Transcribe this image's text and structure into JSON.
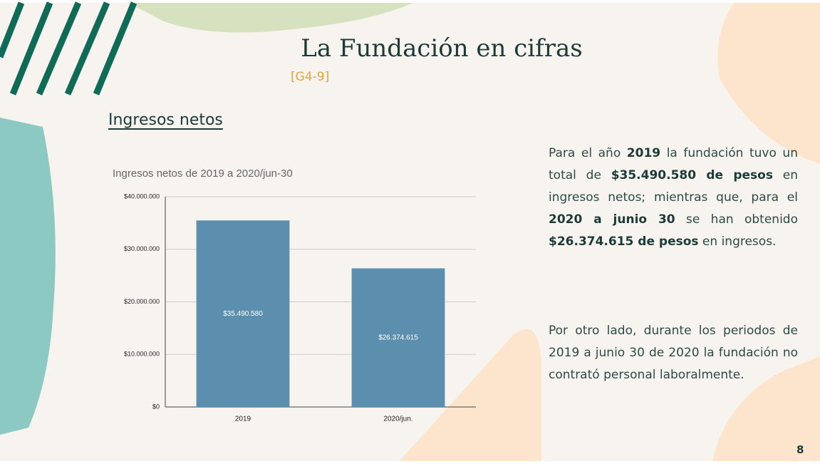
{
  "slide": {
    "title": "La Fundación en cifras",
    "code": "[G4-9]",
    "section": "Ingresos netos",
    "paragraphs": [
      [
        {
          "text": "Para el año ",
          "bold": false
        },
        {
          "text": "2019",
          "bold": true
        },
        {
          "text": " la fundación tuvo un total de ",
          "bold": false
        },
        {
          "text": "$35.490.580 de pesos",
          "bold": true
        },
        {
          "text": " en ingresos netos; mientras que, para el ",
          "bold": false
        },
        {
          "text": "2020 a junio 30",
          "bold": true
        },
        {
          "text": " se han obtenido ",
          "bold": false
        },
        {
          "text": "$26.374.615 de pesos",
          "bold": true
        },
        {
          "text": " en ingresos.",
          "bold": false
        }
      ],
      [
        {
          "text": "Por otro lado, durante los periodos de 2019 a junio 30 de 2020 la fundación no contrató personal laboralmente.",
          "bold": false
        }
      ]
    ],
    "page_number": "8"
  },
  "chart_data": {
    "type": "bar",
    "title": "Ingresos netos de 2019 a 2020/jun-30",
    "categories": [
      "2019",
      "2020/jun."
    ],
    "values": [
      35490580,
      26374615
    ],
    "value_labels": [
      "$35.490.580",
      "$26.374.615"
    ],
    "color": "#5b8fad",
    "ylim": [
      0,
      40000000
    ],
    "yticks": [
      {
        "value": 0,
        "label": "$0"
      },
      {
        "value": 10000000,
        "label": "$10.000.000"
      },
      {
        "value": 20000000,
        "label": "$20.000.000"
      },
      {
        "value": 30000000,
        "label": "$30.000.000"
      },
      {
        "value": 40000000,
        "label": "$40.000.000"
      }
    ],
    "grid": true
  }
}
